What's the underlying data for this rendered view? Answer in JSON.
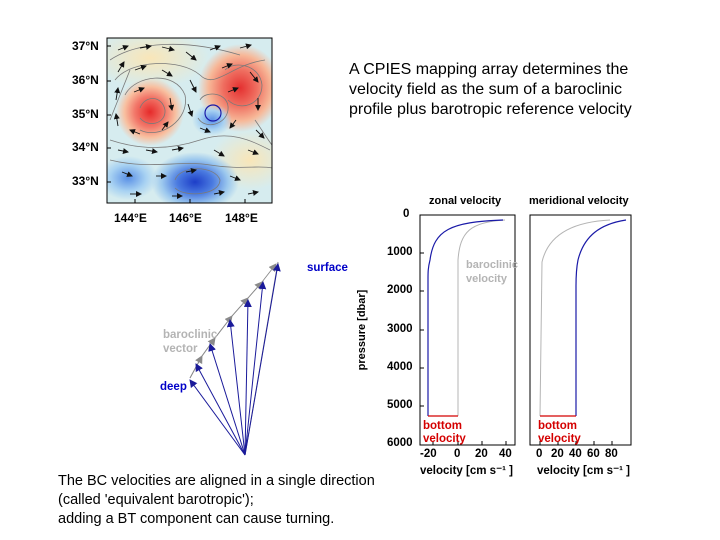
{
  "headline": "A CPIES mapping array determines the velocity field as the sum of a baroclinic profile plus barotropic reference velocity",
  "footnote": {
    "line1": "The BC velocities are aligned in a single direction",
    "line2": "(called 'equivalent barotropic');",
    "line3": "adding a BT component can cause turning."
  },
  "map": {
    "lat_labels": [
      "37°N",
      "36°N",
      "35°N",
      "34°N",
      "33°N"
    ],
    "lon_labels": [
      "144°E",
      "146°E",
      "148°E"
    ]
  },
  "hodograph": {
    "surface_label": "surface",
    "baroclinic_label": [
      "baroclinic",
      "vector"
    ],
    "deep_label": "deep"
  },
  "profiles": {
    "yaxis_label": "pressure [dbar]",
    "yticks": [
      "0",
      "1000",
      "2000",
      "3000",
      "4000",
      "5000",
      "6000"
    ],
    "zonal": {
      "title": "zonal velocity",
      "xticks": [
        "-20",
        "0",
        "20",
        "40"
      ],
      "xlabel": "velocity [cm s⁻¹ ]"
    },
    "meridional": {
      "title": "meridional velocity",
      "xticks": [
        "0",
        "20",
        "40",
        "60",
        "80"
      ],
      "xlabel": "velocity [cm s⁻¹ ]"
    },
    "baroclinic_label": [
      "baroclinic",
      "velocity"
    ],
    "bottom_label": [
      "bottom",
      "velocity"
    ]
  },
  "colors": {
    "warm": "#e83c3c",
    "cool": "#2040d0",
    "profile_line": "#1a1aa8",
    "bottom": "#d40000",
    "baroclinic_gray": "#b4b4b4",
    "surface_label": "#0000c8"
  }
}
